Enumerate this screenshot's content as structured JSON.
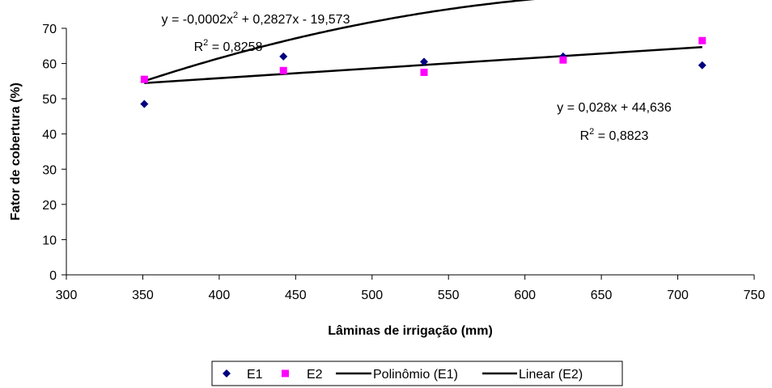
{
  "chart_data": {
    "type": "scatter",
    "xlabel": "Lâminas de irrigação (mm)",
    "ylabel": "Fator de cobertura (%)",
    "xlim": [
      300,
      750
    ],
    "ylim": [
      0,
      70
    ],
    "xticks": [
      300,
      350,
      400,
      450,
      500,
      550,
      600,
      650,
      700,
      750
    ],
    "yticks": [
      0,
      10,
      20,
      30,
      40,
      50,
      60,
      70
    ],
    "grid": false,
    "legend_placement": "bottom",
    "series": [
      {
        "name": "E1",
        "marker": "diamond",
        "color": "#000080",
        "points": [
          [
            351,
            48.5
          ],
          [
            442,
            62
          ],
          [
            534,
            60.5
          ],
          [
            625,
            62
          ],
          [
            716,
            59.5
          ]
        ]
      },
      {
        "name": "E2",
        "marker": "square",
        "color": "#FF00FF",
        "points": [
          [
            351,
            55.5
          ],
          [
            442,
            58
          ],
          [
            534,
            57.5
          ],
          [
            625,
            61
          ],
          [
            716,
            66.5
          ]
        ]
      }
    ],
    "trendlines": [
      {
        "name": "Polinômio (E1)",
        "kind": "polynomial",
        "coefficients": [
          -0.0002,
          0.2827,
          -19.573
        ],
        "x_range": [
          351,
          716
        ],
        "color": "#000000",
        "equation": {
          "prefix": "y = -0,0002x",
          "sup": "2",
          "suffix": " + 0,2827x - 19,573"
        },
        "r2": {
          "prefix": "R",
          "sup": "2",
          "suffix": " = 0,8258"
        }
      },
      {
        "name": "Linear (E2)",
        "kind": "linear",
        "coefficients": [
          0.028,
          44.636
        ],
        "x_range": [
          351,
          716
        ],
        "color": "#000000",
        "equation": {
          "prefix": "y = 0,028x + 44,636",
          "sup": "",
          "suffix": ""
        },
        "r2": {
          "prefix": "R",
          "sup": "2",
          "suffix": " = 0,8823"
        }
      }
    ],
    "legend": [
      "E1",
      "E2",
      "Polinômio (E1)",
      "Linear (E2)"
    ]
  }
}
